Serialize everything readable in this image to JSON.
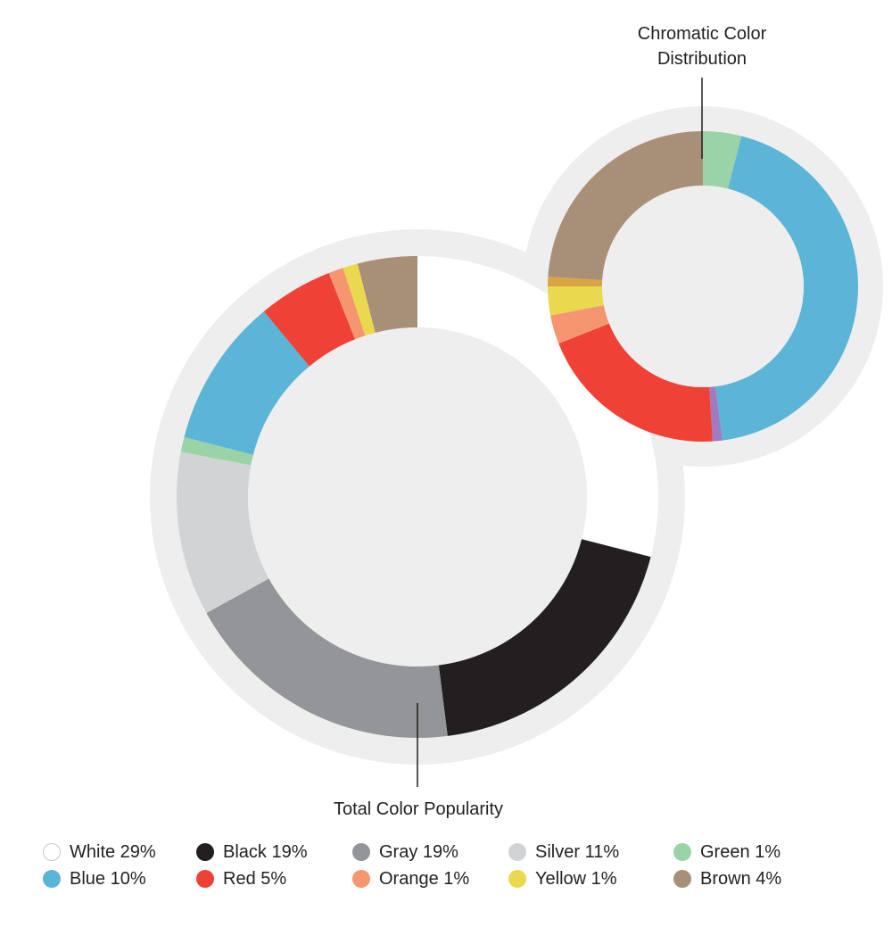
{
  "chart_data": [
    {
      "type": "pie",
      "subtype": "donut",
      "title": "Total Color Popularity",
      "categories": [
        "White",
        "Black",
        "Gray",
        "Silver",
        "Green",
        "Blue",
        "Red",
        "Orange",
        "Yellow",
        "Brown"
      ],
      "values": [
        29,
        19,
        19,
        11,
        1,
        10,
        5,
        1,
        1,
        4
      ],
      "colors": [
        "#ffffff",
        "#231f20",
        "#939598",
        "#d1d3d4",
        "#99d3a6",
        "#5bb5d6",
        "#ef4136",
        "#f69670",
        "#ead84e",
        "#a89078"
      ],
      "start": "12 o'clock",
      "direction": "clockwise"
    },
    {
      "type": "pie",
      "subtype": "donut",
      "title": "Chromatic Color Distribution",
      "categories": [
        "Green",
        "Blue",
        "Purple",
        "Red",
        "Orange",
        "Yellow",
        "Gold",
        "Brown"
      ],
      "values": [
        4,
        44,
        1,
        20,
        3,
        3,
        1,
        24
      ],
      "colors": [
        "#99d3a6",
        "#5bb5d6",
        "#a07bbd",
        "#ef4136",
        "#f69670",
        "#ead84e",
        "#d9a442",
        "#a89078"
      ],
      "start": "12 o'clock",
      "direction": "clockwise"
    }
  ],
  "legend": [
    {
      "label": "White 29%",
      "color": "#ffffff"
    },
    {
      "label": "Black 19%",
      "color": "#231f20"
    },
    {
      "label": "Gray 19%",
      "color": "#939598"
    },
    {
      "label": "Silver 11%",
      "color": "#d1d3d4"
    },
    {
      "label": "Green 1%",
      "color": "#99d3a6"
    },
    {
      "label": "Blue 10%",
      "color": "#5bb5d6"
    },
    {
      "label": "Red 5%",
      "color": "#ef4136"
    },
    {
      "label": "Orange 1%",
      "color": "#f69670"
    },
    {
      "label": "Yellow 1%",
      "color": "#ead84e"
    },
    {
      "label": "Brown 4%",
      "color": "#a89078"
    }
  ],
  "labels": {
    "main_title": "Total Color Popularity",
    "secondary_title_line1": "Chromatic Color",
    "secondary_title_line2": "Distribution"
  },
  "theme": {
    "halo": "#eeeeee",
    "hole": "#eeeeee",
    "text": "#231f20"
  }
}
